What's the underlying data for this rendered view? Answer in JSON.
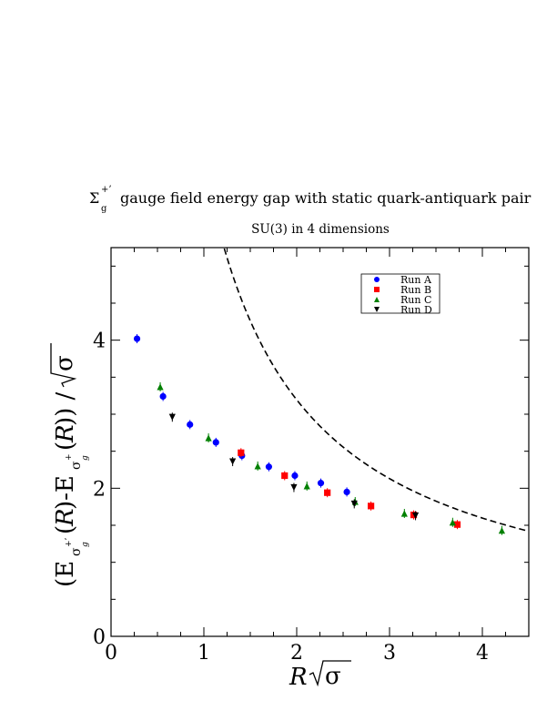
{
  "chart_data": {
    "type": "scatter",
    "title_symbol": "Σ",
    "title_sup": "+’",
    "title_sub": "g",
    "title_text": "gauge field energy gap with static quark-antiquark pair",
    "subtitle": "SU(3) in 4 dimensions",
    "xlabel_R": "R",
    "sigma": "σ",
    "ylabel": "(E_{Σg+'}(R)-E_{Σg+}(R)) / √σ",
    "xlim": [
      0,
      4.5
    ],
    "ylim": [
      0,
      5.25
    ],
    "x_ticks": [
      "0",
      "1",
      "2",
      "3",
      "4"
    ],
    "y_ticks": [
      "0",
      "2",
      "4"
    ],
    "legend_position": "top-right",
    "series": [
      {
        "name": "Run A",
        "marker": "circle",
        "color": "#0000ff",
        "points": [
          [
            0.28,
            4.02
          ],
          [
            0.56,
            3.24
          ],
          [
            0.85,
            2.86
          ],
          [
            1.13,
            2.62
          ],
          [
            1.41,
            2.44
          ],
          [
            1.7,
            2.29
          ],
          [
            1.98,
            2.17
          ],
          [
            2.26,
            2.07
          ],
          [
            2.54,
            1.95
          ]
        ]
      },
      {
        "name": "Run B",
        "marker": "square",
        "color": "#ff0000",
        "points": [
          [
            1.4,
            2.48
          ],
          [
            1.87,
            2.17
          ],
          [
            2.33,
            1.94
          ],
          [
            2.8,
            1.76
          ],
          [
            3.26,
            1.64
          ],
          [
            3.73,
            1.51
          ]
        ]
      },
      {
        "name": "Run C",
        "marker": "triangle-up",
        "color": "#008000",
        "points": [
          [
            0.53,
            3.37
          ],
          [
            1.05,
            2.68
          ],
          [
            1.58,
            2.3
          ],
          [
            2.11,
            2.03
          ],
          [
            2.63,
            1.82
          ],
          [
            3.16,
            1.66
          ],
          [
            3.68,
            1.54
          ],
          [
            4.21,
            1.43
          ]
        ]
      },
      {
        "name": "Run D",
        "marker": "triangle-down",
        "color": "#000000",
        "points": [
          [
            0.66,
            2.96
          ],
          [
            1.31,
            2.36
          ],
          [
            1.97,
            2.01
          ],
          [
            2.62,
            1.79
          ],
          [
            3.28,
            1.63
          ]
        ]
      }
    ],
    "curve": {
      "style": "dashed",
      "x_range": [
        1.22,
        4.5
      ]
    }
  }
}
